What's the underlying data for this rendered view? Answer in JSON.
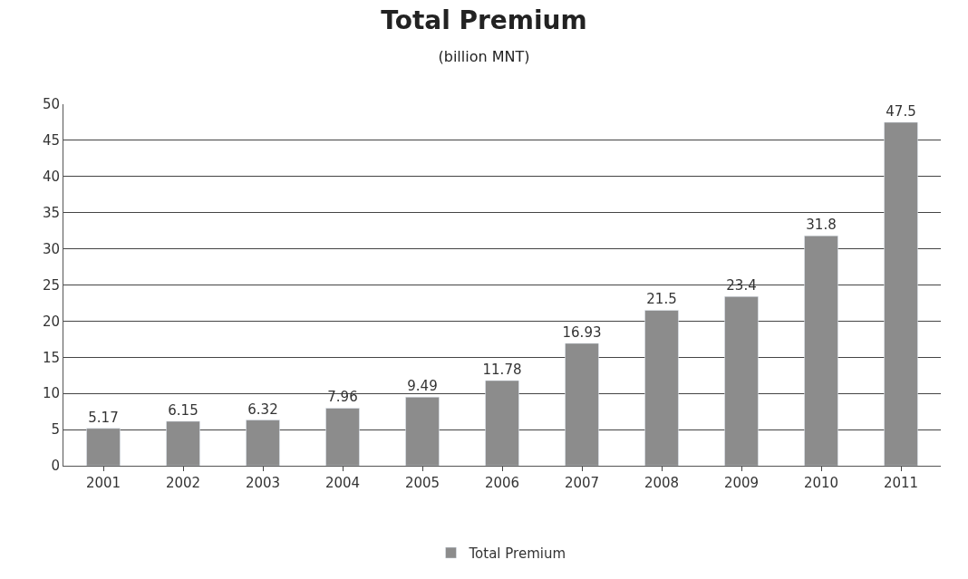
{
  "chart_data": {
    "type": "bar",
    "title": "Total Premium",
    "subtitle": "(billion MNT)",
    "categories": [
      "2001",
      "2002",
      "2003",
      "2004",
      "2005",
      "2006",
      "2007",
      "2008",
      "2009",
      "2010",
      "2011"
    ],
    "series": [
      {
        "name": "Total Premium",
        "color": "#8c8c8c",
        "values": [
          5.17,
          6.15,
          6.32,
          7.96,
          9.49,
          11.78,
          16.93,
          21.5,
          23.4,
          31.8,
          47.5
        ]
      }
    ],
    "ylim": [
      0,
      50
    ],
    "yticks": [
      0,
      5,
      10,
      15,
      20,
      25,
      30,
      35,
      40,
      45,
      50
    ],
    "grid": "y",
    "legend": "bottom",
    "data_labels": true
  }
}
